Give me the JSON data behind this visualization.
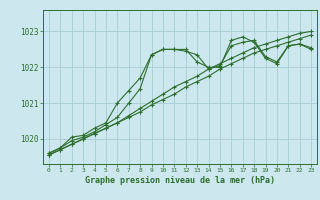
{
  "xlabel": "Graphe pression niveau de la mer (hPa)",
  "bg_color": "#cce8ee",
  "grid_color": "#aad0d8",
  "line_color": "#2d6e2d",
  "ylim": [
    1019.3,
    1023.6
  ],
  "xlim": [
    -0.5,
    23.5
  ],
  "yticks": [
    1020,
    1021,
    1022,
    1023
  ],
  "xticks": [
    0,
    1,
    2,
    3,
    4,
    5,
    6,
    7,
    8,
    9,
    10,
    11,
    12,
    13,
    14,
    15,
    16,
    17,
    18,
    19,
    20,
    21,
    22,
    23
  ],
  "series1": [
    1019.6,
    1019.75,
    1019.95,
    1020.05,
    1020.2,
    1020.4,
    1020.6,
    1021.0,
    1021.4,
    1022.35,
    1022.5,
    1022.5,
    1022.45,
    1022.35,
    1021.95,
    1022.05,
    1022.6,
    1022.7,
    1022.75,
    1022.3,
    1022.15,
    1022.6,
    1022.65,
    1022.55
  ],
  "series2": [
    1019.55,
    1019.7,
    1019.85,
    1020.0,
    1020.15,
    1020.3,
    1020.45,
    1020.6,
    1020.75,
    1020.95,
    1021.1,
    1021.25,
    1021.45,
    1021.6,
    1021.75,
    1021.95,
    1022.1,
    1022.25,
    1022.4,
    1022.5,
    1022.6,
    1022.7,
    1022.8,
    1022.9
  ],
  "series3": [
    1019.55,
    1019.7,
    1019.85,
    1020.0,
    1020.15,
    1020.3,
    1020.45,
    1020.65,
    1020.85,
    1021.05,
    1021.25,
    1021.45,
    1021.6,
    1021.75,
    1021.95,
    1022.1,
    1022.25,
    1022.4,
    1022.55,
    1022.65,
    1022.75,
    1022.85,
    1022.95,
    1023.0
  ],
  "series4": [
    1019.6,
    1019.75,
    1020.05,
    1020.1,
    1020.3,
    1020.45,
    1021.0,
    1021.35,
    1021.7,
    1022.35,
    1022.5,
    1022.5,
    1022.5,
    1022.15,
    1022.0,
    1022.0,
    1022.75,
    1022.85,
    1022.7,
    1022.25,
    1022.1,
    1022.6,
    1022.65,
    1022.5
  ]
}
